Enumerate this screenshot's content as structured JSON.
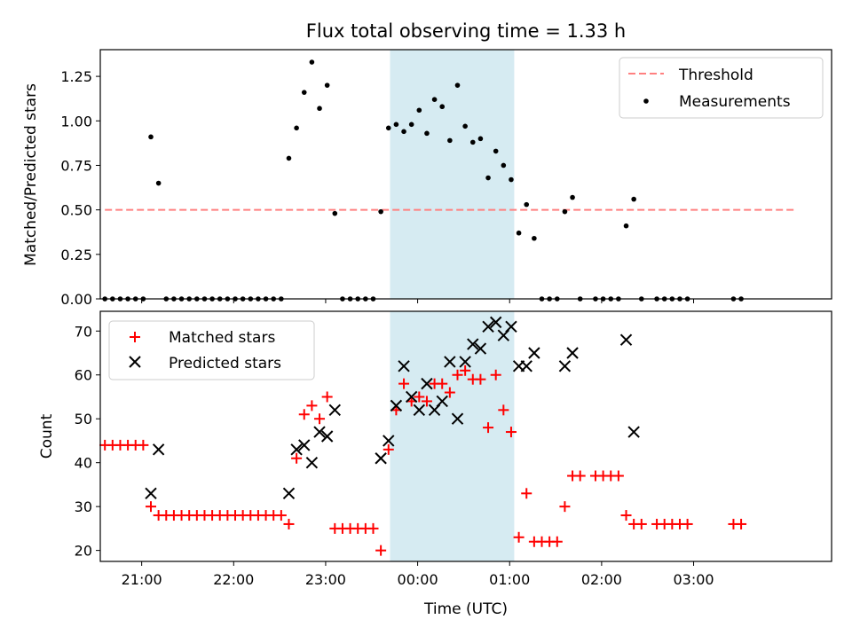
{
  "chart_data": [
    {
      "type": "scatter",
      "title": "Flux total observing time = 1.33 h",
      "xlabel": "",
      "ylabel": "Matched/Predicted stars",
      "ylim": [
        0,
        1.4
      ],
      "xlim": [
        "20:33",
        "04:30"
      ],
      "yticks": [
        "0.00",
        "0.25",
        "0.50",
        "0.75",
        "1.00",
        "1.25"
      ],
      "shaded_span": {
        "from": "23:42",
        "to": "01:03",
        "color": "#add8e6"
      },
      "legend": {
        "placement": "top-right",
        "entries": [
          "Threshold",
          "Measurements"
        ]
      },
      "series": [
        {
          "name": "Threshold",
          "style": "dashed-line",
          "color": "#ff8080",
          "points": [
            [
              "20:36",
              0.5
            ],
            [
              "04:06",
              0.5
            ]
          ]
        },
        {
          "name": "Measurements",
          "style": "dot",
          "color": "#000000",
          "points": [
            [
              "20:36",
              0.0
            ],
            [
              "20:41",
              0.0
            ],
            [
              "20:46",
              0.0
            ],
            [
              "20:51",
              0.0
            ],
            [
              "20:56",
              0.0
            ],
            [
              "21:01",
              0.0
            ],
            [
              "21:06",
              0.91
            ],
            [
              "21:11",
              0.65
            ],
            [
              "21:16",
              0.0
            ],
            [
              "21:21",
              0.0
            ],
            [
              "21:26",
              0.0
            ],
            [
              "21:31",
              0.0
            ],
            [
              "21:36",
              0.0
            ],
            [
              "21:41",
              0.0
            ],
            [
              "21:46",
              0.0
            ],
            [
              "21:51",
              0.0
            ],
            [
              "21:56",
              0.0
            ],
            [
              "22:01",
              0.0
            ],
            [
              "22:06",
              0.0
            ],
            [
              "22:11",
              0.0
            ],
            [
              "22:16",
              0.0
            ],
            [
              "22:21",
              0.0
            ],
            [
              "22:26",
              0.0
            ],
            [
              "22:31",
              0.0
            ],
            [
              "22:36",
              0.79
            ],
            [
              "22:41",
              0.96
            ],
            [
              "22:46",
              1.16
            ],
            [
              "22:51",
              1.33
            ],
            [
              "22:56",
              1.07
            ],
            [
              "23:01",
              1.2
            ],
            [
              "23:06",
              0.48
            ],
            [
              "23:11",
              0.0
            ],
            [
              "23:16",
              0.0
            ],
            [
              "23:21",
              0.0
            ],
            [
              "23:26",
              0.0
            ],
            [
              "23:31",
              0.0
            ],
            [
              "23:36",
              0.49
            ],
            [
              "23:41",
              0.96
            ],
            [
              "23:46",
              0.98
            ],
            [
              "23:51",
              0.94
            ],
            [
              "23:56",
              0.98
            ],
            [
              "00:01",
              1.06
            ],
            [
              "00:06",
              0.93
            ],
            [
              "00:11",
              1.12
            ],
            [
              "00:16",
              1.08
            ],
            [
              "00:21",
              0.89
            ],
            [
              "00:26",
              1.2
            ],
            [
              "00:31",
              0.97
            ],
            [
              "00:36",
              0.88
            ],
            [
              "00:41",
              0.9
            ],
            [
              "00:46",
              0.68
            ],
            [
              "00:51",
              0.83
            ],
            [
              "00:56",
              0.75
            ],
            [
              "01:01",
              0.67
            ],
            [
              "01:06",
              0.37
            ],
            [
              "01:11",
              0.53
            ],
            [
              "01:16",
              0.34
            ],
            [
              "01:21",
              0.0
            ],
            [
              "01:26",
              0.0
            ],
            [
              "01:31",
              0.0
            ],
            [
              "01:36",
              0.49
            ],
            [
              "01:41",
              0.57
            ],
            [
              "01:46",
              0.0
            ],
            [
              "01:56",
              0.0
            ],
            [
              "02:01",
              0.0
            ],
            [
              "02:06",
              0.0
            ],
            [
              "02:11",
              0.0
            ],
            [
              "02:16",
              0.41
            ],
            [
              "02:21",
              0.56
            ],
            [
              "02:26",
              0.0
            ],
            [
              "02:36",
              0.0
            ],
            [
              "02:41",
              0.0
            ],
            [
              "02:46",
              0.0
            ],
            [
              "02:51",
              0.0
            ],
            [
              "02:56",
              0.0
            ],
            [
              "03:26",
              0.0
            ],
            [
              "03:31",
              0.0
            ]
          ]
        }
      ]
    },
    {
      "type": "scatter",
      "title": "",
      "xlabel": "Time (UTC)",
      "ylabel": "Count",
      "ylim": [
        17.5,
        74.5
      ],
      "xlim": [
        "20:33",
        "04:30"
      ],
      "yticks": [
        "20",
        "30",
        "40",
        "50",
        "60",
        "70"
      ],
      "xticks": [
        "21:00",
        "22:00",
        "23:00",
        "00:00",
        "01:00",
        "02:00",
        "03:00"
      ],
      "shaded_span": {
        "from": "23:42",
        "to": "01:03",
        "color": "#add8e6"
      },
      "legend": {
        "placement": "top-left",
        "entries": [
          "Matched stars",
          "Predicted stars"
        ]
      },
      "series": [
        {
          "name": "Matched stars",
          "style": "plus",
          "color": "#ff0000",
          "points": [
            [
              "20:36",
              44
            ],
            [
              "20:41",
              44
            ],
            [
              "20:46",
              44
            ],
            [
              "20:51",
              44
            ],
            [
              "20:56",
              44
            ],
            [
              "21:01",
              44
            ],
            [
              "21:06",
              30
            ],
            [
              "21:11",
              28
            ],
            [
              "21:16",
              28
            ],
            [
              "21:21",
              28
            ],
            [
              "21:26",
              28
            ],
            [
              "21:31",
              28
            ],
            [
              "21:36",
              28
            ],
            [
              "21:41",
              28
            ],
            [
              "21:46",
              28
            ],
            [
              "21:51",
              28
            ],
            [
              "21:56",
              28
            ],
            [
              "22:01",
              28
            ],
            [
              "22:06",
              28
            ],
            [
              "22:11",
              28
            ],
            [
              "22:16",
              28
            ],
            [
              "22:21",
              28
            ],
            [
              "22:26",
              28
            ],
            [
              "22:31",
              28
            ],
            [
              "22:36",
              26
            ],
            [
              "22:41",
              41
            ],
            [
              "22:46",
              51
            ],
            [
              "22:51",
              53
            ],
            [
              "22:56",
              50
            ],
            [
              "23:01",
              55
            ],
            [
              "23:06",
              25
            ],
            [
              "23:11",
              25
            ],
            [
              "23:16",
              25
            ],
            [
              "23:21",
              25
            ],
            [
              "23:26",
              25
            ],
            [
              "23:31",
              25
            ],
            [
              "23:36",
              20
            ],
            [
              "23:41",
              43
            ],
            [
              "23:46",
              52
            ],
            [
              "23:51",
              58
            ],
            [
              "23:56",
              54
            ],
            [
              "00:01",
              55
            ],
            [
              "00:06",
              54
            ],
            [
              "00:11",
              58
            ],
            [
              "00:16",
              58
            ],
            [
              "00:21",
              56
            ],
            [
              "00:26",
              60
            ],
            [
              "00:31",
              61
            ],
            [
              "00:36",
              59
            ],
            [
              "00:41",
              59
            ],
            [
              "00:46",
              48
            ],
            [
              "00:51",
              60
            ],
            [
              "00:56",
              52
            ],
            [
              "01:01",
              47
            ],
            [
              "01:06",
              23
            ],
            [
              "01:11",
              33
            ],
            [
              "01:16",
              22
            ],
            [
              "01:21",
              22
            ],
            [
              "01:26",
              22
            ],
            [
              "01:31",
              22
            ],
            [
              "01:36",
              30
            ],
            [
              "01:41",
              37
            ],
            [
              "01:46",
              37
            ],
            [
              "01:56",
              37
            ],
            [
              "02:01",
              37
            ],
            [
              "02:06",
              37
            ],
            [
              "02:11",
              37
            ],
            [
              "02:16",
              28
            ],
            [
              "02:21",
              26
            ],
            [
              "02:26",
              26
            ],
            [
              "02:36",
              26
            ],
            [
              "02:41",
              26
            ],
            [
              "02:46",
              26
            ],
            [
              "02:51",
              26
            ],
            [
              "02:56",
              26
            ],
            [
              "03:26",
              26
            ],
            [
              "03:31",
              26
            ]
          ]
        },
        {
          "name": "Predicted stars",
          "style": "cross",
          "color": "#000000",
          "points": [
            [
              "21:06",
              33
            ],
            [
              "21:11",
              43
            ],
            [
              "22:36",
              33
            ],
            [
              "22:41",
              43
            ],
            [
              "22:46",
              44
            ],
            [
              "22:51",
              40
            ],
            [
              "22:56",
              47
            ],
            [
              "23:01",
              46
            ],
            [
              "23:06",
              52
            ],
            [
              "23:36",
              41
            ],
            [
              "23:41",
              45
            ],
            [
              "23:46",
              53
            ],
            [
              "23:51",
              62
            ],
            [
              "23:56",
              55
            ],
            [
              "00:01",
              52
            ],
            [
              "00:06",
              58
            ],
            [
              "00:11",
              52
            ],
            [
              "00:16",
              54
            ],
            [
              "00:21",
              63
            ],
            [
              "00:26",
              50
            ],
            [
              "00:31",
              63
            ],
            [
              "00:36",
              67
            ],
            [
              "00:41",
              66
            ],
            [
              "00:46",
              71
            ],
            [
              "00:51",
              72
            ],
            [
              "00:56",
              69
            ],
            [
              "01:01",
              71
            ],
            [
              "01:06",
              62
            ],
            [
              "01:11",
              62
            ],
            [
              "01:16",
              65
            ],
            [
              "01:36",
              62
            ],
            [
              "01:41",
              65
            ],
            [
              "02:16",
              68
            ],
            [
              "02:21",
              47
            ]
          ]
        }
      ]
    }
  ]
}
